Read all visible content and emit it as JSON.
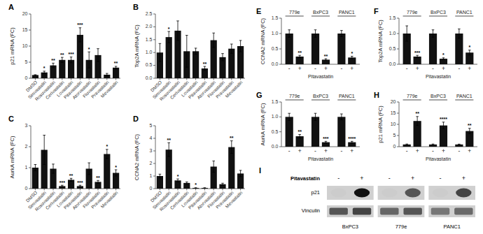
{
  "chart_data": [
    {
      "type": "bar",
      "title": "A",
      "ylabel": "p21 mRNA (FC)",
      "categories": [
        "DMSO",
        "Simvastatin",
        "Rosuvastatin",
        "Cerivastatin",
        "Lovastatin",
        "Pitavastatin",
        "Atorvastatin",
        "Fluvastatin",
        "Pravastatin",
        "Mevastatin"
      ],
      "values": [
        1.0,
        1.8,
        4.0,
        5.7,
        5.7,
        13.5,
        5.7,
        7.2,
        1.1,
        3.3
      ],
      "errors": [
        0.1,
        0.4,
        0.7,
        0.8,
        0.9,
        2.2,
        2.5,
        2.0,
        0.4,
        0.4
      ],
      "annotations": [
        null,
        "*",
        "**",
        "**",
        "***",
        "***",
        "*",
        null,
        null,
        "**"
      ],
      "color": "#111111",
      "ylim": [
        0,
        20
      ],
      "yticks": [
        0,
        5,
        10,
        15,
        20
      ]
    },
    {
      "type": "bar",
      "title": "B",
      "ylabel": "Top2A mRNA (FC)",
      "categories": [
        "DMSO",
        "Simvastatin",
        "Rosuvastatin",
        "Cerivastatin",
        "Lovastatin",
        "Pitavastatin",
        "Atorvastatin",
        "Fluvastatin",
        "Pravastatin",
        "Mevastatin"
      ],
      "values": [
        1.0,
        1.6,
        1.85,
        1.05,
        1.05,
        0.38,
        1.48,
        0.82,
        1.15,
        1.25
      ],
      "errors": [
        0.35,
        0.22,
        0.38,
        0.62,
        0.12,
        0.08,
        0.28,
        0.14,
        0.18,
        0.22
      ],
      "annotations": [
        null,
        "*",
        null,
        null,
        null,
        "**",
        null,
        null,
        null,
        null
      ],
      "color": "#111111",
      "ylim": [
        0.0,
        2.5
      ],
      "yticks": [
        {
          "value": 0,
          "label": "0.0"
        },
        0.5,
        {
          "value": 1,
          "label": "1.0"
        },
        1.5,
        {
          "value": 2,
          "label": "2.0"
        },
        2.5
      ]
    },
    {
      "type": "bar",
      "title": "C",
      "ylabel": "AurkA mRNA (FC)",
      "categories": [
        "DMSO",
        "Simvastatin",
        "Rosuvastatin",
        "Cerivastatin",
        "Lovastatin",
        "Pitavastatin",
        "Atorvastatin",
        "Fluvastatin",
        "Pravastatin",
        "Mevastatin"
      ],
      "values": [
        1.0,
        1.85,
        0.95,
        0.12,
        0.42,
        0.12,
        0.95,
        0.32,
        1.65,
        0.75
      ],
      "errors": [
        0.15,
        0.7,
        0.22,
        0.04,
        0.07,
        0.04,
        0.28,
        0.07,
        0.22,
        0.15
      ],
      "annotations": [
        null,
        null,
        null,
        "***",
        "**",
        "***",
        null,
        "**",
        "*",
        "*"
      ],
      "color": "#111111",
      "ylim": [
        0,
        3
      ],
      "yticks": [
        0,
        1,
        2,
        3
      ]
    },
    {
      "type": "bar",
      "title": "D",
      "ylabel": "CCNA2 mRNA (FC)",
      "categories": [
        "DMSO",
        "Simvastatin",
        "Rosuvastatin",
        "Cerivastatin",
        "Lovastatin",
        "Pitavastatin",
        "Atorvastatin",
        "Fluvastatin",
        "Pravastatin",
        "Mevastatin"
      ],
      "values": [
        1.0,
        3.1,
        0.65,
        0.45,
        0.05,
        0.05,
        1.75,
        0.35,
        3.3,
        1.2
      ],
      "errors": [
        0.15,
        0.55,
        0.12,
        0.08,
        0.02,
        0.02,
        0.45,
        0.08,
        0.5,
        0.25
      ],
      "annotations": [
        null,
        "**",
        "*",
        null,
        "*",
        null,
        null,
        null,
        "**",
        null
      ],
      "color": "#111111",
      "ylim": [
        0,
        5
      ],
      "yticks": [
        0,
        1,
        2,
        3,
        4,
        5
      ]
    },
    {
      "type": "grouped_bar",
      "title": "E",
      "ylabel": "CCNA2 mRNA (FC)",
      "xlabel": "Pitavastatin",
      "groups": [
        "779e",
        "BxPC3",
        "PANC1"
      ],
      "series": [
        {
          "name": "-",
          "values": [
            1.0,
            1.0,
            1.0
          ],
          "errors": [
            0.12,
            0.12,
            0.1
          ]
        },
        {
          "name": "+",
          "values": [
            0.25,
            0.15,
            0.22
          ],
          "errors": [
            0.04,
            0.03,
            0.04
          ],
          "annotations": [
            "**",
            "**",
            "*"
          ]
        }
      ],
      "color": "#111111",
      "ylim": [
        0,
        1.5
      ],
      "yticks": [
        {
          "value": 0,
          "label": "0.0"
        },
        0.5,
        {
          "value": 1,
          "label": "1.0"
        },
        1.5
      ]
    },
    {
      "type": "grouped_bar",
      "title": "F",
      "ylabel": "Top2A mRNA (FC)",
      "xlabel": "Pitavastatin",
      "groups": [
        "779e",
        "BxPC3",
        "PANC1"
      ],
      "series": [
        {
          "name": "-",
          "values": [
            1.0,
            1.0,
            1.0
          ],
          "errors": [
            0.25,
            0.12,
            0.15
          ]
        },
        {
          "name": "+",
          "values": [
            0.25,
            0.18,
            0.38
          ],
          "errors": [
            0.04,
            0.03,
            0.08
          ],
          "annotations": [
            "***",
            "*",
            "*"
          ]
        }
      ],
      "color": "#111111",
      "ylim": [
        0,
        1.5
      ],
      "yticks": [
        {
          "value": 0,
          "label": "0.0"
        },
        0.5,
        {
          "value": 1,
          "label": "1.0"
        },
        1.5
      ]
    },
    {
      "type": "grouped_bar",
      "title": "G",
      "ylabel": "AurkA mRNA (FC)",
      "xlabel": "Pitavastatin",
      "groups": [
        "779e",
        "BxPC3",
        "PANC1"
      ],
      "series": [
        {
          "name": "-",
          "values": [
            1.0,
            1.0,
            1.0
          ],
          "errors": [
            0.12,
            0.12,
            0.1
          ]
        },
        {
          "name": "+",
          "values": [
            0.35,
            0.15,
            0.15
          ],
          "errors": [
            0.06,
            0.03,
            0.03
          ],
          "annotations": [
            "**",
            "***",
            "****"
          ]
        }
      ],
      "color": "#111111",
      "ylim": [
        0,
        1.5
      ],
      "yticks": [
        {
          "value": 0,
          "label": "0.0"
        },
        0.5,
        {
          "value": 1,
          "label": "1.0"
        },
        1.5
      ]
    },
    {
      "type": "grouped_bar",
      "title": "H",
      "ylabel": "p21 mRNA (FC)",
      "xlabel": "Pitavastatin",
      "groups": [
        "779e",
        "BxPC3",
        "PANC1"
      ],
      "series": [
        {
          "name": "-",
          "values": [
            1.0,
            1.0,
            1.0
          ],
          "errors": [
            0.2,
            0.2,
            0.15
          ]
        },
        {
          "name": "+",
          "values": [
            11.5,
            9.5,
            7.0
          ],
          "errors": [
            2.0,
            1.5,
            1.2
          ],
          "annotations": [
            "**",
            "****",
            "**"
          ]
        }
      ],
      "color": "#111111",
      "ylim": [
        0,
        20
      ],
      "yticks": [
        0,
        5,
        10,
        15,
        20
      ]
    },
    {
      "type": "western_blot",
      "title": "I",
      "label": "Pitavastatin",
      "conditions": [
        "-",
        "+"
      ],
      "categories": [
        "BxPC3",
        "779e",
        "PANC1"
      ],
      "series": [
        {
          "name": "p21",
          "colors": [
            "#cccccc",
            "#111111",
            "#cccccc",
            "#555555",
            "#cccccc",
            "#444444"
          ]
        },
        {
          "name": "Vinculin",
          "colors": [
            "#555555",
            "#444444",
            "#666666",
            "#555555",
            "#777777",
            "#6a6a6a"
          ]
        }
      ],
      "background_color": "#d0d0d0"
    }
  ]
}
